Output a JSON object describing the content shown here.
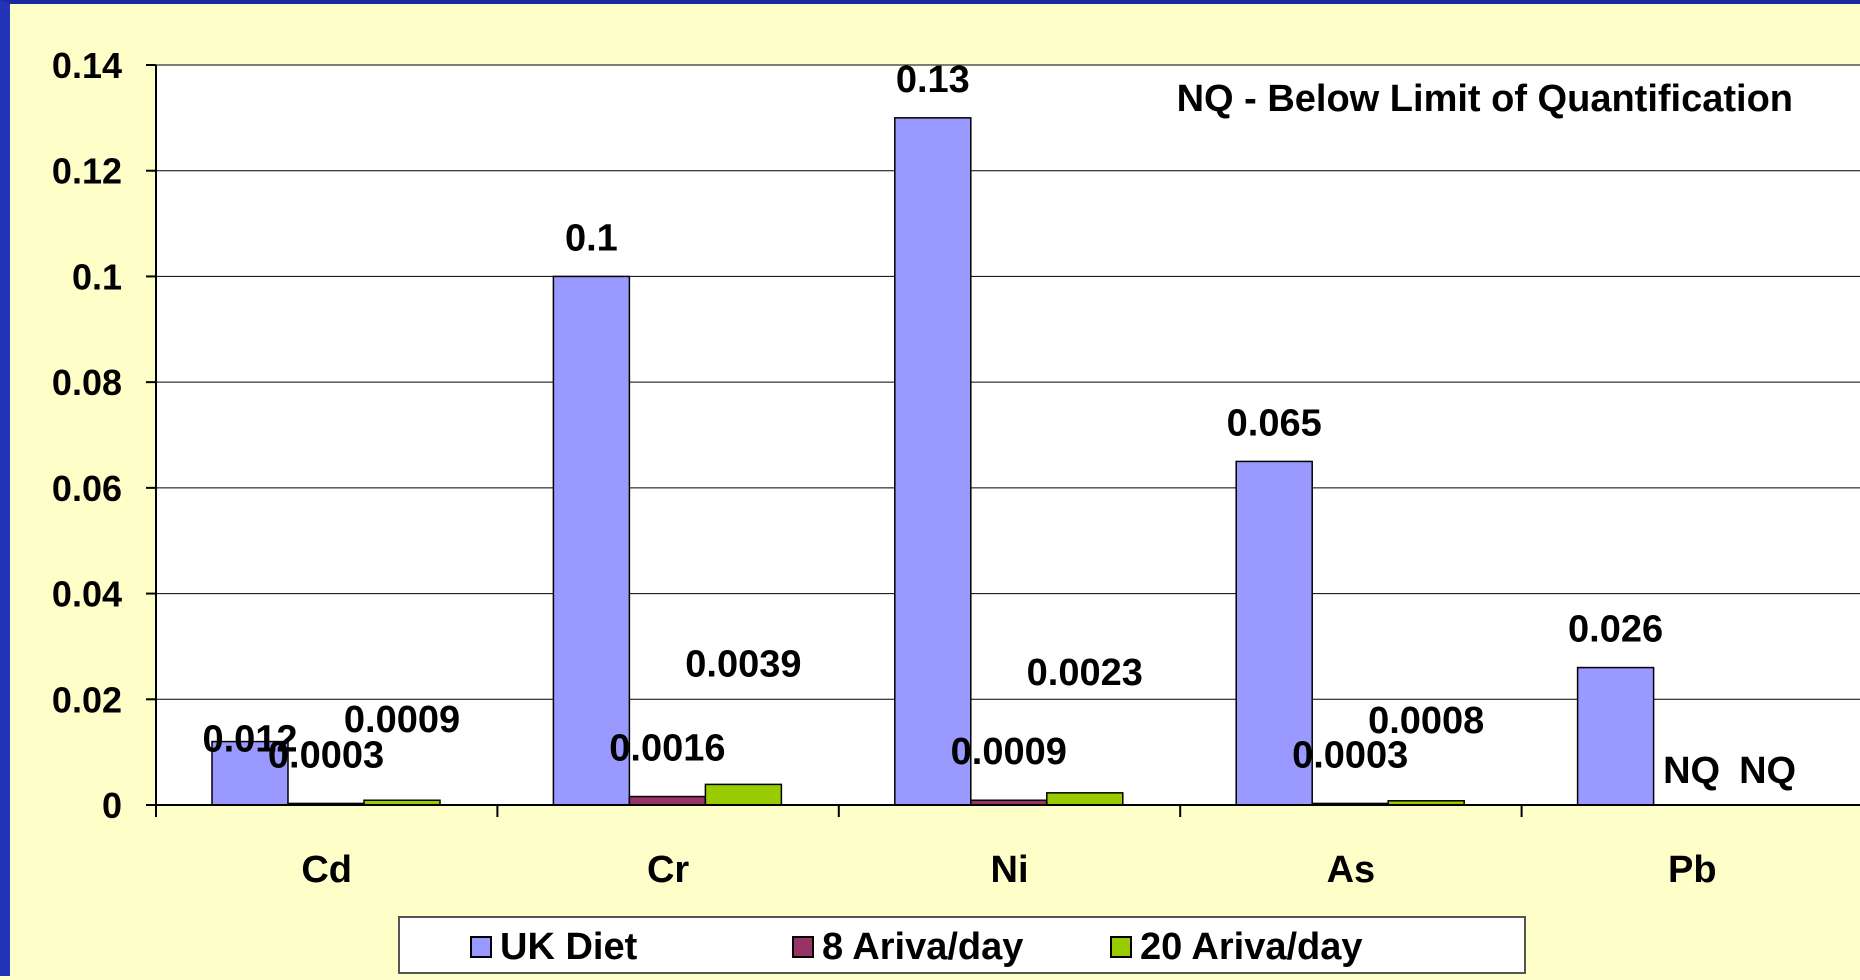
{
  "chart_data": {
    "type": "bar",
    "categories": [
      "Cd",
      "Cr",
      "Ni",
      "As",
      "Pb"
    ],
    "series": [
      {
        "name": "UK Diet",
        "color": "#9999ff",
        "values": [
          0.012,
          0.1,
          0.13,
          0.065,
          0.026
        ],
        "labels": [
          "0.012",
          "0.1",
          "0.13",
          "0.065",
          "0.026"
        ]
      },
      {
        "name": "8 Ariva/day",
        "color": "#993366",
        "values": [
          0.0003,
          0.0016,
          0.0009,
          0.0003,
          null
        ],
        "labels": [
          "0.0003",
          "0.0016",
          "0.0009",
          "0.0003",
          "NQ"
        ]
      },
      {
        "name": "20 Ariva/day",
        "color": "#99cc00",
        "values": [
          0.0009,
          0.0039,
          0.0023,
          0.0008,
          null
        ],
        "labels": [
          "0.0009",
          "0.0039",
          "0.0023",
          "0.0008",
          "NQ"
        ]
      }
    ],
    "ylim": [
      0,
      0.14
    ],
    "yticks": [
      "0",
      "0.02",
      "0.04",
      "0.06",
      "0.08",
      "0.1",
      "0.12",
      "0.14"
    ],
    "grid": true,
    "annotation": "NQ - Below Limit of Quantification",
    "legend": "bottom"
  }
}
